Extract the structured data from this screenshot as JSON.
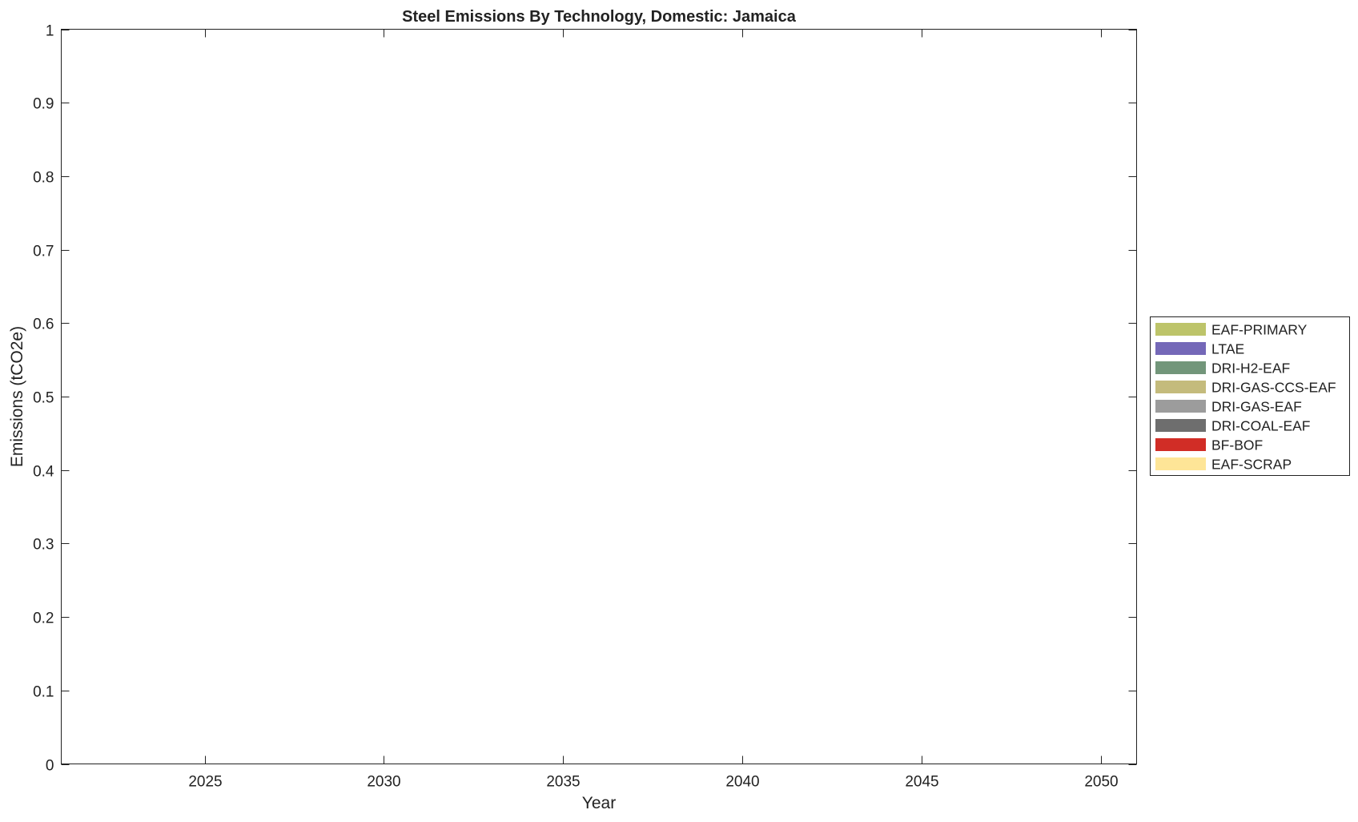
{
  "chart_data": {
    "type": "area",
    "title": "Steel Emissions By Technology, Domestic: Jamaica",
    "xlabel": "Year",
    "ylabel": "Emissions (tCO2e)",
    "xlim": [
      2021,
      2051
    ],
    "ylim": [
      0,
      1
    ],
    "xticks": [
      2025,
      2030,
      2035,
      2040,
      2045,
      2050
    ],
    "yticks": [
      0,
      0.1,
      0.2,
      0.3,
      0.4,
      0.5,
      0.6,
      0.7,
      0.8,
      0.9,
      1
    ],
    "ytick_labels": [
      "0",
      "0.1",
      "0.2",
      "0.3",
      "0.4",
      "0.5",
      "0.6",
      "0.7",
      "0.8",
      "0.9",
      "1"
    ],
    "grid": false,
    "legend_placement": "right",
    "series": [
      {
        "name": "EAF-PRIMARY",
        "color": "#bdc46a",
        "values": []
      },
      {
        "name": "LTAE",
        "color": "#7468b8",
        "values": []
      },
      {
        "name": "DRI-H2-EAF",
        "color": "#72967a",
        "values": []
      },
      {
        "name": "DRI-GAS-CCS-EAF",
        "color": "#c4bb7c",
        "values": []
      },
      {
        "name": "DRI-GAS-EAF",
        "color": "#9c9c9c",
        "values": []
      },
      {
        "name": "DRI-COAL-EAF",
        "color": "#6e6e6e",
        "values": []
      },
      {
        "name": "BF-BOF",
        "color": "#d12d26",
        "values": []
      },
      {
        "name": "EAF-SCRAP",
        "color": "#fee597",
        "values": []
      }
    ]
  }
}
